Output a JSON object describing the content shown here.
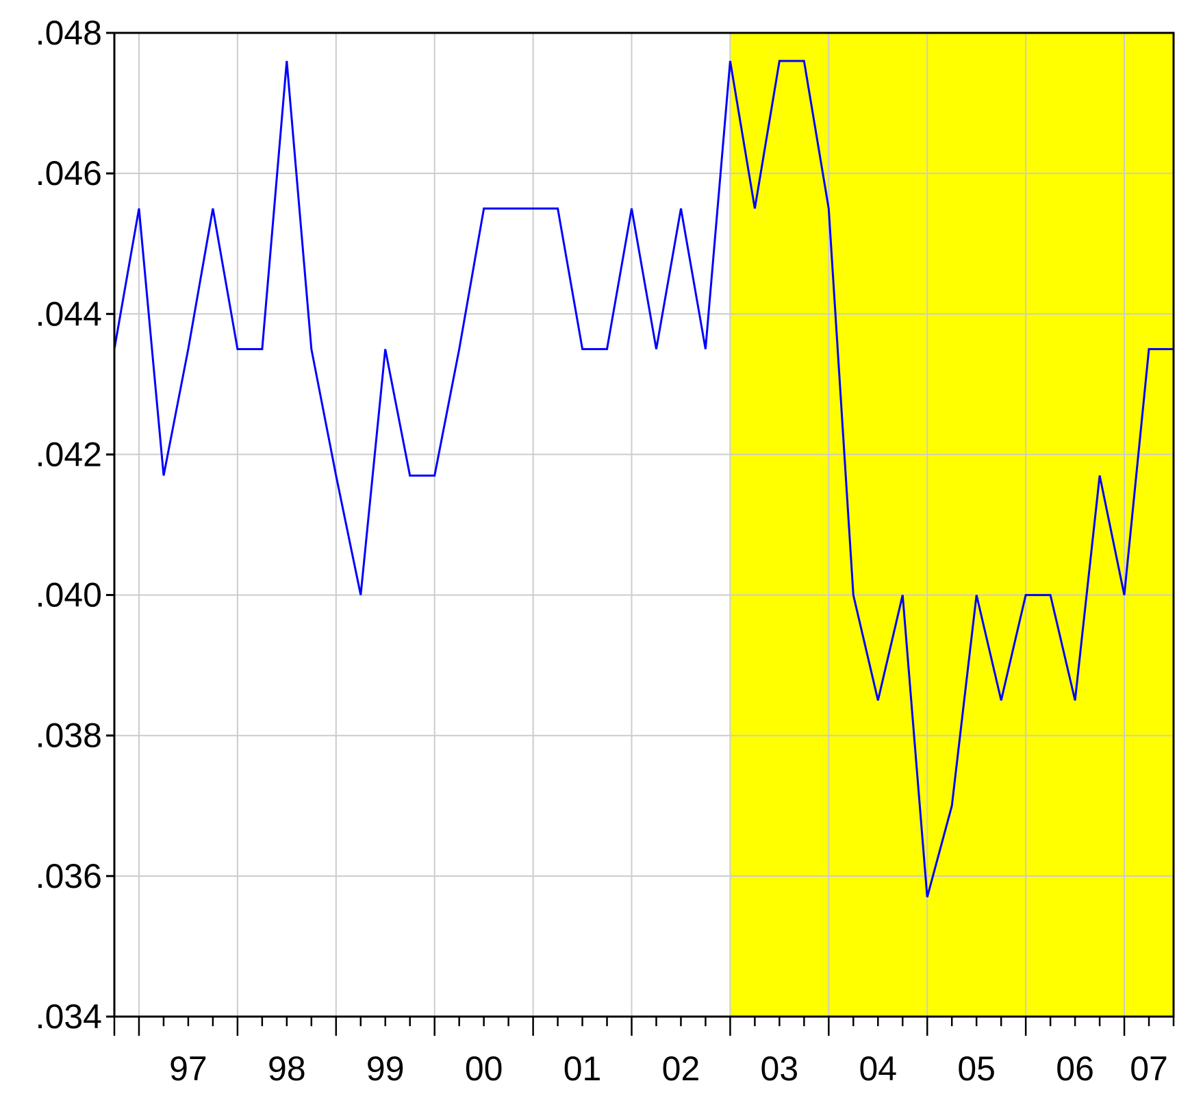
{
  "chart_data": {
    "type": "line",
    "title": "",
    "xlabel": "",
    "ylabel": "",
    "ylim": [
      0.034,
      0.048
    ],
    "yticks": [
      ".034",
      ".036",
      ".038",
      ".040",
      ".042",
      ".044",
      ".046",
      ".048"
    ],
    "year_labels": [
      "97",
      "98",
      "99",
      "00",
      "01",
      "02",
      "03",
      "04",
      "05",
      "06",
      "07"
    ],
    "x_range": [
      1996.75,
      2007.5
    ],
    "grid": true,
    "line_color": "#0000ff",
    "highlight": {
      "from": 2003.0,
      "to": 2007.5,
      "color": "#ffff00"
    },
    "series": [
      {
        "x": [
          1996.75,
          1997.0,
          1997.25,
          1997.5,
          1997.75,
          1998.0,
          1998.25,
          1998.5,
          1998.75,
          1999.0,
          1999.25,
          1999.5,
          1999.75,
          2000.0,
          2000.25,
          2000.5,
          2000.75,
          2001.0,
          2001.25,
          2001.5,
          2001.75,
          2002.0,
          2002.25,
          2002.5,
          2002.75,
          2003.0,
          2003.25,
          2003.5,
          2003.75,
          2004.0,
          2004.25,
          2004.5,
          2004.75,
          2005.0,
          2005.25,
          2005.5,
          2005.75,
          2006.0,
          2006.25,
          2006.5,
          2006.75,
          2007.0,
          2007.25,
          2007.5
        ],
        "values": [
          0.0435,
          0.0455,
          0.0417,
          0.0435,
          0.0455,
          0.0435,
          0.0435,
          0.0476,
          0.0435,
          0.0417,
          0.04,
          0.0435,
          0.0417,
          0.0417,
          0.0435,
          0.0455,
          0.0455,
          0.0455,
          0.0455,
          0.0435,
          0.0435,
          0.0455,
          0.0435,
          0.0455,
          0.0435,
          0.0476,
          0.0455,
          0.0476,
          0.0476,
          0.0455,
          0.04,
          0.0385,
          0.04,
          0.0357,
          0.037,
          0.04,
          0.0385,
          0.04,
          0.04,
          0.0385,
          0.0417,
          0.04,
          0.0435,
          0.0435
        ]
      }
    ]
  }
}
